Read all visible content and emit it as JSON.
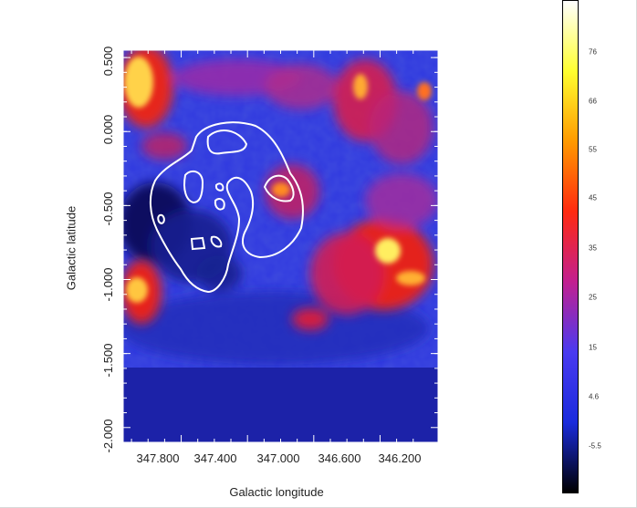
{
  "axes": {
    "xlabel": "Galactic longitude",
    "ylabel": "Galactic latitude",
    "x_ticks": [
      "347.800",
      "347.400",
      "347.000",
      "346.600",
      "346.200"
    ],
    "y_ticks": [
      "0.500",
      "0.000",
      "-0.500",
      "-1.000",
      "-1.500",
      "-2.000"
    ]
  },
  "colorbar": {
    "labels": [
      "76",
      "66",
      "55",
      "45",
      "35",
      "25",
      "15",
      "4.6",
      "-5.5"
    ],
    "colors": [
      "#000000",
      "#1a2bdc",
      "#4a3af0",
      "#c22090",
      "#ff2a10",
      "#ff9a00",
      "#ffff30",
      "#ffffff"
    ]
  },
  "colors": {
    "map_fill": "#1c22a8",
    "contour": "#ffffff",
    "axes_line": "#ffffff"
  },
  "chart_data": {
    "type": "heatmap",
    "xlabel": "Galactic longitude",
    "ylabel": "Galactic latitude",
    "xlim": [
      347.95,
      346.05
    ],
    "ylim": [
      -2.1,
      0.55
    ],
    "x_ticks": [
      347.8,
      347.4,
      347.0,
      346.6,
      346.2
    ],
    "y_ticks": [
      0.5,
      0.0,
      -0.5,
      -1.0,
      -1.5,
      -2.0
    ],
    "colorbar_range": [
      -5.5,
      76
    ],
    "colorbar_ticks": [
      76,
      66,
      55,
      45,
      35,
      25,
      15,
      4.6,
      -5.5
    ]
  }
}
